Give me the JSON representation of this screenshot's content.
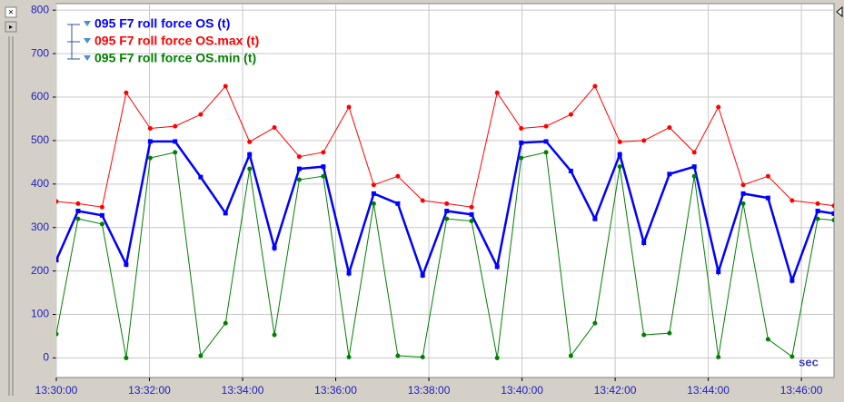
{
  "chart_data": {
    "type": "line",
    "x": [
      "13:30:00",
      "13:30:28",
      "13:30:59",
      "13:31:30",
      "13:32:01",
      "13:32:33",
      "13:33:06",
      "13:33:38",
      "13:34:09",
      "13:34:41",
      "13:35:13",
      "13:35:44",
      "13:36:17",
      "13:36:49",
      "13:37:20",
      "13:37:52",
      "13:38:23",
      "13:38:55",
      "13:39:28",
      "13:39:59",
      "13:40:31",
      "13:41:03",
      "13:41:34",
      "13:42:06",
      "13:42:37",
      "13:43:10",
      "13:43:42",
      "13:44:13",
      "13:44:45",
      "13:45:17",
      "13:45:48",
      "13:46:21",
      "13:46:42"
    ],
    "series": [
      {
        "name": "095 F7 roll force OS (t)",
        "color": "#0000ff",
        "values": [
          225,
          338,
          328,
          215,
          498,
          498,
          416,
          333,
          468,
          253,
          435,
          440,
          195,
          378,
          355,
          190,
          338,
          330,
          210,
          495,
          498,
          430,
          320,
          468,
          265,
          423,
          440,
          198,
          378,
          368,
          178,
          338,
          332
        ]
      },
      {
        "name": "095 F7 roll force OS.max (t)",
        "color": "#ff0000",
        "values": [
          360,
          355,
          347,
          610,
          528,
          533,
          560,
          625,
          497,
          530,
          463,
          473,
          577,
          398,
          418,
          362,
          355,
          347,
          610,
          528,
          533,
          560,
          625,
          497,
          500,
          530,
          473,
          577,
          398,
          418,
          362,
          355,
          350
        ]
      },
      {
        "name": "095 F7 roll force OS.min (t)",
        "color": "#008000",
        "values": [
          55,
          320,
          308,
          0,
          460,
          473,
          5,
          80,
          435,
          53,
          410,
          418,
          2,
          355,
          5,
          2,
          320,
          315,
          0,
          460,
          473,
          5,
          80,
          440,
          53,
          57,
          418,
          2,
          355,
          43,
          3,
          320,
          317
        ]
      }
    ],
    "xlim": [
      "13:30:00",
      "13:46:42"
    ],
    "xticks": [
      "13:30:00",
      "13:32:00",
      "13:34:00",
      "13:36:00",
      "13:38:00",
      "13:40:00",
      "13:42:00",
      "13:44:00",
      "13:46:00"
    ],
    "ylim": [
      -45,
      815
    ],
    "yticks": [
      0,
      100,
      200,
      300,
      400,
      500,
      600,
      700,
      800
    ],
    "xlabel": "sec",
    "grid": true
  }
}
